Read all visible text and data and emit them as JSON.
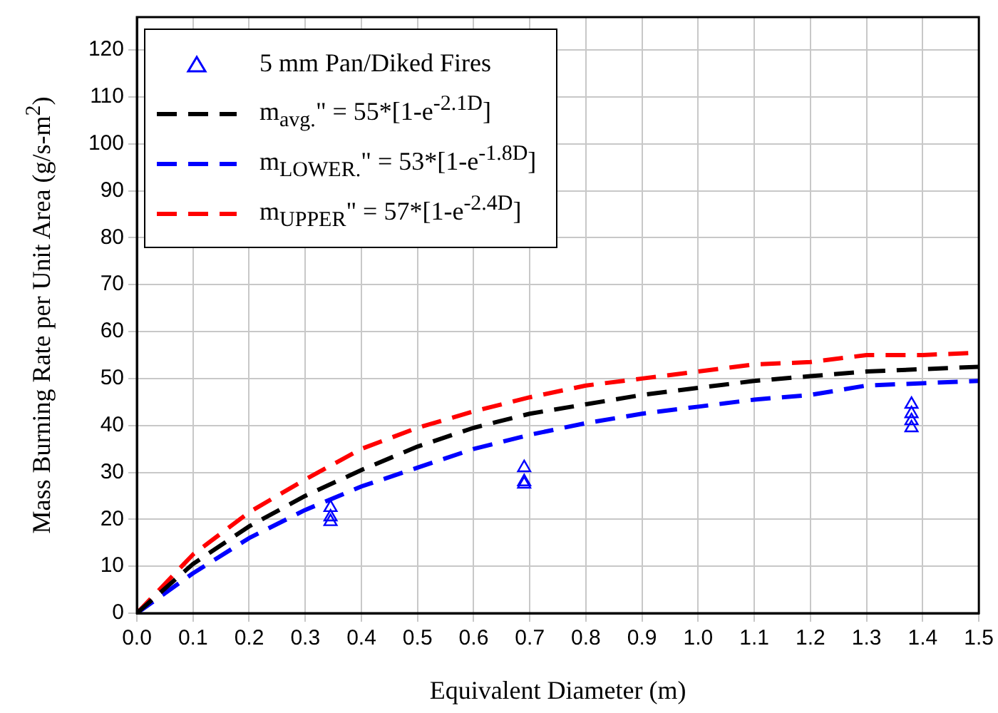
{
  "chart_data": {
    "type": "line",
    "xlabel": "Equivalent Diameter (m)",
    "ylabel": "Mass Burning Rate per Unit Area (g/s-m$^{2}$)",
    "xlim": [
      0,
      1.5
    ],
    "xticks": [
      {
        "value": 0,
        "label": "0.0"
      },
      0.1,
      0.2,
      0.3,
      0.4,
      0.5,
      0.6,
      0.7,
      0.8,
      0.9,
      {
        "value": 1,
        "label": "1.0"
      },
      1.1,
      1.2,
      1.3,
      1.4,
      1.5
    ],
    "ylim": [
      0,
      127
    ],
    "yticks": [
      0,
      10,
      20,
      30,
      40,
      50,
      60,
      70,
      80,
      90,
      100,
      110,
      120
    ],
    "grid": true,
    "legend": "top left",
    "line_style": "dashed",
    "series": [
      {
        "name": "5 mm Pan/Diked Fires",
        "type": "scatter",
        "marker": "triangle",
        "color": "#0000ff",
        "x": [
          0.345,
          0.345,
          0.345,
          0.69,
          0.69,
          0.69,
          1.38,
          1.38,
          1.38,
          1.38
        ],
        "values": [
          22.5,
          20.5,
          19.5,
          31,
          28,
          27.5,
          44.5,
          42.5,
          41,
          39.5
        ]
      },
      {
        "name": "m$_{avg.}$\" = 55*[1-e$^{-2.1D}$]",
        "color": "#000000",
        "x": [
          0,
          0.1,
          0.2,
          0.3,
          0.4,
          0.5,
          0.6,
          0.7,
          0.8,
          0.9,
          1,
          1.1,
          1.2,
          1.3,
          1.4,
          1.5
        ],
        "values": [
          0,
          10.5,
          18.5,
          25,
          30.5,
          35.5,
          39.5,
          42.5,
          44.5,
          46.5,
          48,
          49.5,
          50.5,
          51.5,
          52,
          52.5
        ]
      },
      {
        "name": "m$_{LOWER.}$\" = 53*[1-e$^{-1.8D}$]",
        "color": "#0000ff",
        "x": [
          0,
          0.1,
          0.2,
          0.3,
          0.4,
          0.5,
          0.6,
          0.7,
          0.8,
          0.9,
          1,
          1.1,
          1.2,
          1.3,
          1.4,
          1.5
        ],
        "values": [
          0,
          8.5,
          16,
          22,
          27,
          31,
          35,
          38,
          40.5,
          42.5,
          44,
          45.5,
          46.5,
          48.5,
          49,
          49.5
        ]
      },
      {
        "name": "m$_{UPPER}$\" = 57*[1-e$^{-2.4D}$]",
        "color": "#ff0000",
        "x": [
          0,
          0.1,
          0.2,
          0.3,
          0.4,
          0.5,
          0.6,
          0.7,
          0.8,
          0.9,
          1,
          1.1,
          1.2,
          1.3,
          1.4,
          1.5
        ],
        "values": [
          0,
          12.5,
          21.5,
          28.5,
          35,
          39.5,
          43,
          46,
          48.5,
          50,
          51.5,
          53,
          53.5,
          55,
          55,
          55.5
        ]
      }
    ]
  }
}
